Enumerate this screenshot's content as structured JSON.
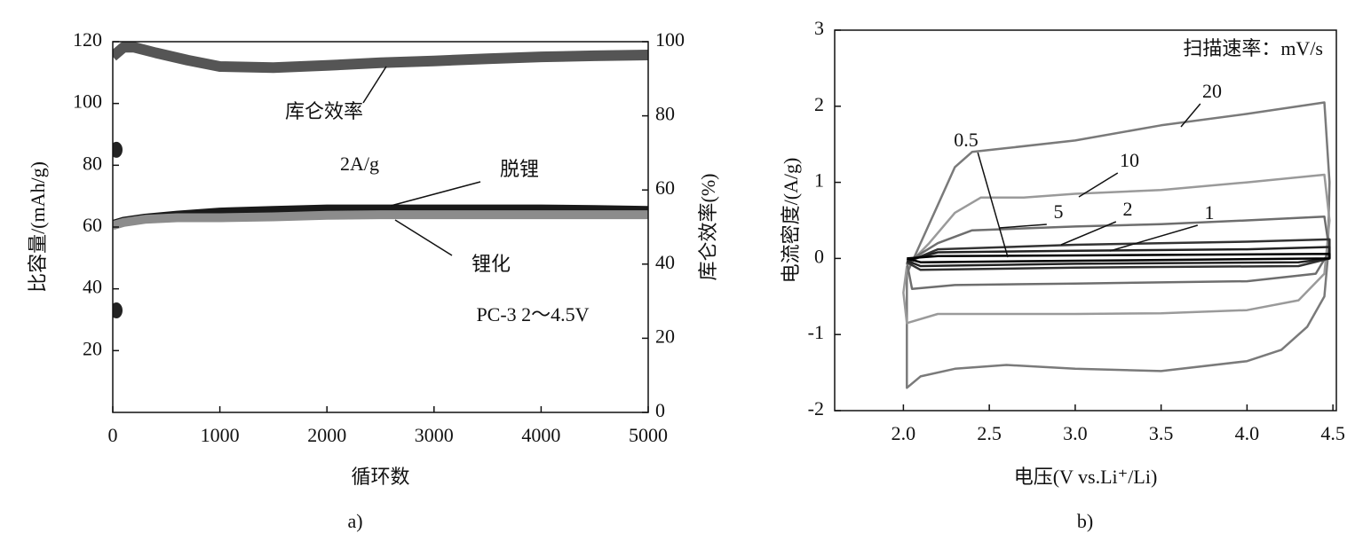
{
  "chart_data": [
    {
      "type": "line",
      "caption": "a)",
      "xlabel": "循环数",
      "ylabel": "比容量/(mAh/g)",
      "y2label": "库仑效率(%)",
      "xlim": [
        0,
        5000
      ],
      "xticks": [
        0,
        1000,
        2000,
        3000,
        4000,
        5000
      ],
      "ylim": [
        0,
        120
      ],
      "yticks": [
        20,
        40,
        60,
        80,
        100,
        120
      ],
      "y2lim": [
        0,
        100
      ],
      "y2ticks": [
        0,
        20,
        40,
        60,
        80,
        100
      ],
      "annotations": [
        "2A/g",
        "PC-3  2～4.5V"
      ],
      "series": [
        {
          "name": "库仑效率",
          "color": "#555555",
          "axis": "y2",
          "x": [
            0,
            100,
            200,
            400,
            700,
            1000,
            1500,
            2000,
            2500,
            3000,
            3500,
            4000,
            4500,
            5000
          ],
          "values": [
            96,
            98.5,
            98.5,
            97,
            95,
            93.3,
            93,
            93.6,
            94.3,
            94.8,
            95.4,
            95.9,
            96.2,
            96.4
          ]
        },
        {
          "name": "脱锂",
          "color": "#1a1a1a",
          "x": [
            0,
            100,
            300,
            600,
            1000,
            1500,
            2000,
            2500,
            3000,
            3500,
            4000,
            4500,
            5000
          ],
          "values": [
            61,
            62,
            63,
            64,
            65,
            65.5,
            66,
            66,
            66,
            66,
            66,
            65.8,
            65.5
          ]
        },
        {
          "name": "锂化",
          "color": "#8c8c8c",
          "x": [
            0,
            100,
            300,
            600,
            1000,
            1500,
            2000,
            2500,
            3000,
            3500,
            4000,
            4500,
            5000
          ],
          "values": [
            60.5,
            61.5,
            62.5,
            63,
            63,
            63.3,
            63.8,
            64,
            64,
            64,
            64,
            64,
            64
          ]
        },
        {
          "type": "scatter",
          "color": "#222222",
          "x": [
            0,
            0
          ],
          "values": [
            85,
            33
          ]
        }
      ]
    },
    {
      "type": "line",
      "caption": "b)",
      "xlabel": "电压(V vs.Li⁺/Li)",
      "ylabel": "电流密度/(A/g)",
      "xlim": [
        1.6,
        4.52
      ],
      "xticks": [
        {
          "value": 2,
          "label": "2.0"
        },
        2.5,
        {
          "value": 3,
          "label": "3.0"
        },
        3.5,
        {
          "value": 4,
          "label": "4.0"
        },
        4.5
      ],
      "ylim": [
        -2,
        3
      ],
      "yticks": [
        -2,
        -1,
        0,
        1,
        2,
        3
      ],
      "annotations": [
        "扫描速率：mV/s"
      ],
      "series": [
        {
          "name": "20",
          "color": "#7a7a7a",
          "x": [
            2.02,
            2.1,
            2.2,
            2.3,
            2.4,
            2.6,
            3.0,
            3.5,
            4.0,
            4.45,
            4.48,
            4.47,
            4.45,
            4.35,
            4.2,
            4.0,
            3.5,
            3.0,
            2.6,
            2.3,
            2.1,
            2.02,
            2.02
          ],
          "values": [
            -0.2,
            0.2,
            0.7,
            1.2,
            1.4,
            1.45,
            1.55,
            1.75,
            1.9,
            2.05,
            1.0,
            0,
            -0.5,
            -0.9,
            -1.2,
            -1.35,
            -1.48,
            -1.45,
            -1.4,
            -1.45,
            -1.55,
            -1.7,
            -0.2
          ]
        },
        {
          "name": "10",
          "color": "#9a9a9a",
          "x": [
            2.02,
            2.15,
            2.3,
            2.45,
            2.7,
            3.0,
            3.5,
            4.0,
            4.45,
            4.48,
            4.45,
            4.3,
            4.0,
            3.5,
            3.0,
            2.5,
            2.2,
            2.02,
            2.0,
            2.02
          ],
          "values": [
            -0.1,
            0.2,
            0.6,
            0.8,
            0.8,
            0.85,
            0.9,
            1.0,
            1.1,
            0.5,
            -0.2,
            -0.55,
            -0.68,
            -0.72,
            -0.73,
            -0.73,
            -0.73,
            -0.85,
            -0.45,
            -0.1
          ]
        },
        {
          "name": "5",
          "color": "#6e6e6e",
          "x": [
            2.02,
            2.2,
            2.4,
            3.0,
            3.5,
            4.0,
            4.45,
            4.48,
            4.4,
            4.0,
            3.0,
            2.3,
            2.05,
            2.02
          ],
          "values": [
            -0.05,
            0.2,
            0.37,
            0.42,
            0.45,
            0.5,
            0.55,
            0.1,
            -0.2,
            -0.3,
            -0.33,
            -0.35,
            -0.4,
            -0.05
          ]
        },
        {
          "name": "2",
          "color": "#333333",
          "x": [
            2.02,
            2.2,
            3.0,
            4.0,
            4.48,
            4.48,
            4.3,
            3.0,
            2.1,
            2.02
          ],
          "values": [
            -0.05,
            0.12,
            0.18,
            0.22,
            0.25,
            0,
            -0.1,
            -0.12,
            -0.15,
            -0.05
          ]
        },
        {
          "name": "1",
          "color": "#222222",
          "x": [
            2.02,
            2.2,
            3.0,
            4.0,
            4.48,
            4.48,
            4.3,
            3.0,
            2.1,
            2.02
          ],
          "values": [
            -0.03,
            0.08,
            0.1,
            0.12,
            0.15,
            0,
            -0.05,
            -0.07,
            -0.1,
            -0.03
          ]
        },
        {
          "name": "0.5",
          "color": "#000000",
          "x": [
            2.02,
            2.2,
            3.0,
            4.48,
            4.48,
            3.0,
            2.1,
            2.02
          ],
          "values": [
            0,
            0.03,
            0.04,
            0.06,
            0,
            -0.03,
            -0.05,
            0
          ]
        }
      ]
    }
  ]
}
